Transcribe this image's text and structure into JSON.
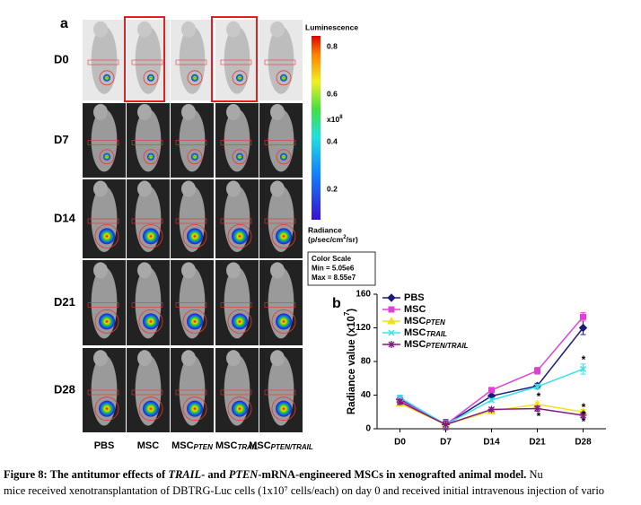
{
  "panel_a": {
    "label": "a",
    "rows": [
      "D0",
      "D7",
      "D14",
      "D21",
      "D28"
    ],
    "columns": [
      {
        "name": "PBS"
      },
      {
        "name": "MSC"
      },
      {
        "name": "MSC",
        "sub": "PTEN"
      },
      {
        "name": "MSC",
        "sub": "TRAIL"
      },
      {
        "name": "MSC",
        "sub": "PTEN/TRAIL"
      }
    ],
    "scale": {
      "title": "Luminescence",
      "ticks": [
        "0.8",
        "0.6",
        "0.4",
        "0.2"
      ],
      "unit": "x10",
      "unit_sup": "8",
      "radiance": "Radiance",
      "radiance_unit": "(p/sec/cm",
      "radiance_sup": "2",
      "radiance_end": "/sr)",
      "box_title": "Color Scale",
      "min": "Min = 5.05e6",
      "max": "Max = 8.55e7"
    }
  },
  "chart_data": {
    "type": "line",
    "label": "b",
    "ylabel": "Radiance value (x10",
    "ylabel_sup": "7",
    "ylabel_end": ")",
    "categories": [
      "D0",
      "D7",
      "D14",
      "D21",
      "D28"
    ],
    "ylim": [
      0,
      160
    ],
    "yticks": [
      0,
      40,
      80,
      120,
      160
    ],
    "series": [
      {
        "name": "PBS",
        "color": "#1c1c78",
        "marker": "diamond",
        "values": [
          35,
          5,
          39,
          51,
          120
        ],
        "errors": [
          4,
          6,
          2,
          3,
          8
        ]
      },
      {
        "name": "MSC",
        "color": "#e040d8",
        "marker": "square",
        "values": [
          34,
          5,
          46,
          69,
          133
        ],
        "errors": [
          3,
          5,
          2,
          4,
          5
        ]
      },
      {
        "name": "MSC",
        "sub": "PTEN",
        "color": "#f0e020",
        "marker": "triangle",
        "values": [
          30,
          5,
          21,
          29,
          20
        ],
        "errors": [
          3,
          4,
          2,
          3,
          3
        ]
      },
      {
        "name": "MSC",
        "sub": "TRAIL",
        "color": "#40e0e8",
        "marker": "x",
        "values": [
          37,
          5,
          34,
          50,
          71
        ],
        "errors": [
          3,
          4,
          2,
          3,
          6
        ]
      },
      {
        "name": "MSC",
        "sub": "PTEN/TRAIL",
        "color": "#801880",
        "marker": "star",
        "values": [
          32,
          5,
          23,
          24,
          16
        ],
        "errors": [
          3,
          4,
          2,
          3,
          3
        ]
      }
    ],
    "annotations": [
      {
        "text": "*"
      },
      {
        "text": "*"
      },
      {
        "text": "*"
      },
      {
        "text": "*"
      },
      {
        "text": "*"
      },
      {
        "text": "*"
      }
    ]
  },
  "caption": {
    "line1": [
      {
        "text": "Figure 8: The antitumor effects of ",
        "style": "b"
      },
      {
        "text": "TRAIL",
        "style": "bi"
      },
      {
        "text": "- and ",
        "style": "b"
      },
      {
        "text": "PTEN",
        "style": "bi"
      },
      {
        "text": "-mRNA-engineered MSCs in xenografted animal model.",
        "style": "b"
      },
      {
        "text": " Nu",
        "style": "n"
      }
    ],
    "line2": "mice received xenotransplantation of DBTRG-Luc cells (1x10⁷ cells/each) on day 0 and received initial intravenous injection of vario"
  }
}
